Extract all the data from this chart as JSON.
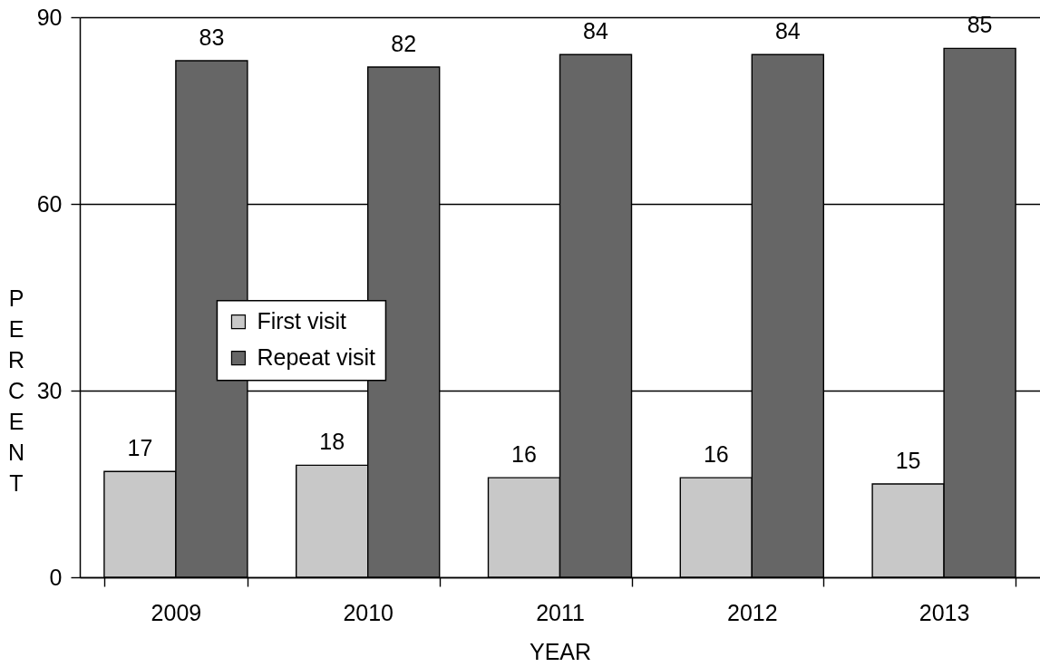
{
  "chart_data": {
    "type": "bar",
    "xlabel": "YEAR",
    "ylabel": "PERCENT",
    "categories": [
      "2009",
      "2010",
      "2011",
      "2012",
      "2013"
    ],
    "series": [
      {
        "name": "First visit",
        "color": "#c8c8c8",
        "values": [
          17,
          18,
          16,
          16,
          15
        ]
      },
      {
        "name": "Repeat visit",
        "color": "#666666",
        "values": [
          83,
          82,
          84,
          84,
          85
        ]
      }
    ],
    "ylim": [
      0,
      90
    ],
    "yticks": [
      0,
      30,
      60,
      90
    ],
    "grid": "y",
    "legend": "left",
    "data_labels": true
  }
}
